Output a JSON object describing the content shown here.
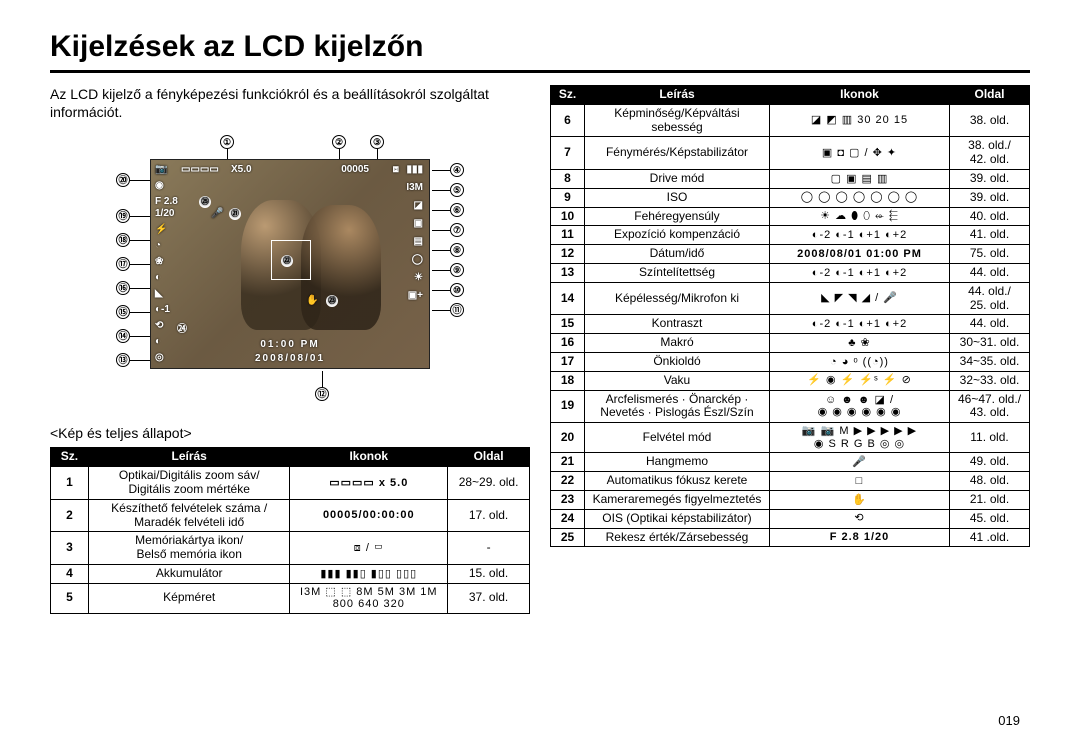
{
  "page_title": "Kijelzések az LCD kijelzőn",
  "intro": "Az LCD kijelző a fényképezési funkciókról és a beállításokról szolgáltat információt.",
  "caption": "<Kép és teljes állapot>",
  "page_number": "019",
  "lcd_overlay": {
    "zoom": "X5.0",
    "counter": "00005",
    "aperture": "F 2.8",
    "shutter": "1/20",
    "resolution": "I3M",
    "time": "01:00 PM",
    "date": "2008/08/01",
    "ev_m1": "-1",
    "meter_plus": "+"
  },
  "markers": {
    "top": {
      "1": "①",
      "2": "②",
      "3": "③"
    },
    "right": {
      "4": "④",
      "5": "⑤",
      "6": "⑥",
      "7": "⑦",
      "8": "⑧",
      "9": "⑨",
      "10": "⑩",
      "11": "⑪"
    },
    "bottom": {
      "12": "⑫"
    },
    "left": {
      "13": "⑬",
      "14": "⑭",
      "15": "⑮",
      "16": "⑯",
      "17": "⑰",
      "18": "⑱",
      "19": "⑲",
      "20": "⑳"
    },
    "inner": {
      "21": "㉑",
      "22": "㉒",
      "23": "㉓",
      "24": "㉔",
      "25": "㉕"
    }
  },
  "left_table": {
    "headers": {
      "num": "Sz.",
      "desc": "Leírás",
      "icons": "Ikonok",
      "page": "Oldal"
    },
    "col_widths": [
      "38px",
      "202px",
      "158px",
      "82px"
    ],
    "rows": [
      {
        "num": "1",
        "desc": "Optikai/Digitális zoom sáv/\nDigitális zoom mértéke",
        "icons": "▭▭▭▭   x 5.0",
        "icons_bold": true,
        "page": "28~29. old."
      },
      {
        "num": "2",
        "desc": "Készíthető felvételek száma /\nMaradék felvételi idő",
        "icons": "00005/00:00:00",
        "icons_bold": true,
        "page": "17. old."
      },
      {
        "num": "3",
        "desc": "Memóriakártya ikon/\nBelső memória ikon",
        "icons": "⧈ / ▭",
        "page": "-"
      },
      {
        "num": "4",
        "desc": "Akkumulátor",
        "icons": "▮▮▮ ▮▮▯ ▮▯▯ ▯▯▯",
        "page": "15. old."
      },
      {
        "num": "5",
        "desc": "Képméret",
        "icons": "I3M ⬚ ⬚ 8M 5M 3M 1M\n800 640 320",
        "page": "37. old."
      }
    ]
  },
  "right_table": {
    "headers": {
      "num": "Sz.",
      "desc": "Leírás",
      "icons": "Ikonok",
      "page": "Oldal"
    },
    "col_widths": [
      "34px",
      "185px",
      "180px",
      "80px"
    ],
    "rows": [
      {
        "num": "6",
        "desc": "Képminőség/Képváltási sebesség",
        "icons": "◪ ◩ ▥ 30 20 15",
        "page": "38. old."
      },
      {
        "num": "7",
        "desc": "Fénymérés/Képstabilizátor",
        "icons": "▣ ◘ ▢ / ✥ ✦",
        "page": "38. old./\n42. old."
      },
      {
        "num": "8",
        "desc": "Drive mód",
        "icons": "▢ ▣ ▤ ▥",
        "page": "39. old."
      },
      {
        "num": "9",
        "desc": "ISO",
        "icons": "◯ ◯ ◯ ◯ ◯ ◯ ◯",
        "page": "39. old."
      },
      {
        "num": "10",
        "desc": "Fehéregyensúly",
        "icons": "☀ ☁ ⬮ ⬯ ⬰ ⬱",
        "page": "40. old."
      },
      {
        "num": "11",
        "desc": "Expozíció kompenzáció",
        "icons": "◐-2 ◐-1 ◐+1 ◐+2",
        "page": "41. old."
      },
      {
        "num": "12",
        "desc": "Dátum/idő",
        "icons": "2008/08/01 01:00 PM",
        "icons_bold": true,
        "page": "75. old."
      },
      {
        "num": "13",
        "desc": "Színtelítettség",
        "icons": "◐-2 ◐-1 ◐+1 ◐+2",
        "page": "44. old."
      },
      {
        "num": "14",
        "desc": "Képélesség/Mikrofon ki",
        "icons": "◣ ◤ ◥ ◢ / 🎤",
        "page": "44. old./\n25. old."
      },
      {
        "num": "15",
        "desc": "Kontraszt",
        "icons": "◐-2 ◐-1 ◐+1 ◐+2",
        "page": "44. old."
      },
      {
        "num": "16",
        "desc": "Makró",
        "icons": "♣ ❀",
        "page": "30~31. old."
      },
      {
        "num": "17",
        "desc": "Önkioldó",
        "icons": "◔ ◕ ᵒ ((◔))",
        "page": "34~35. old."
      },
      {
        "num": "18",
        "desc": "Vaku",
        "icons": "⚡ ◉ ⚡ ⚡ˢ ⚡ ⊘",
        "page": "32~33. old."
      },
      {
        "num": "19",
        "desc": "Arcfelismerés · Önarckép ·\nNevetés · Pislogás Észl/Szín",
        "icons": "☺ ☻ ☻ ◪ /\n◉ ◉ ◉ ◉ ◉ ◉",
        "page": "46~47. old./\n43. old."
      },
      {
        "num": "20",
        "desc": "Felvétel mód",
        "icons": "📷 📷 M ▶ ▶ ▶ ▶ ▶\n◉ S R G B ◎ ◎",
        "page": "11. old."
      },
      {
        "num": "21",
        "desc": "Hangmemo",
        "icons": "🎤",
        "page": "49. old."
      },
      {
        "num": "22",
        "desc": "Automatikus fókusz kerete",
        "icons": "□",
        "page": "48. old."
      },
      {
        "num": "23",
        "desc": "Kameraremegés figyelmeztetés",
        "icons": "✋",
        "page": "21. old."
      },
      {
        "num": "24",
        "desc": "OIS (Optikai képstabilizátor)",
        "icons": "⟲",
        "page": "45. old."
      },
      {
        "num": "25",
        "desc": "Rekesz érték/Zársebesség",
        "icons": "F 2.8 1/20",
        "icons_bold": true,
        "page": "41 .old."
      }
    ]
  },
  "colors": {
    "text": "#000000",
    "background": "#ffffff",
    "header_bg": "#000000",
    "header_fg": "#ffffff",
    "border": "#000000",
    "lcd_tint": "#555555"
  }
}
